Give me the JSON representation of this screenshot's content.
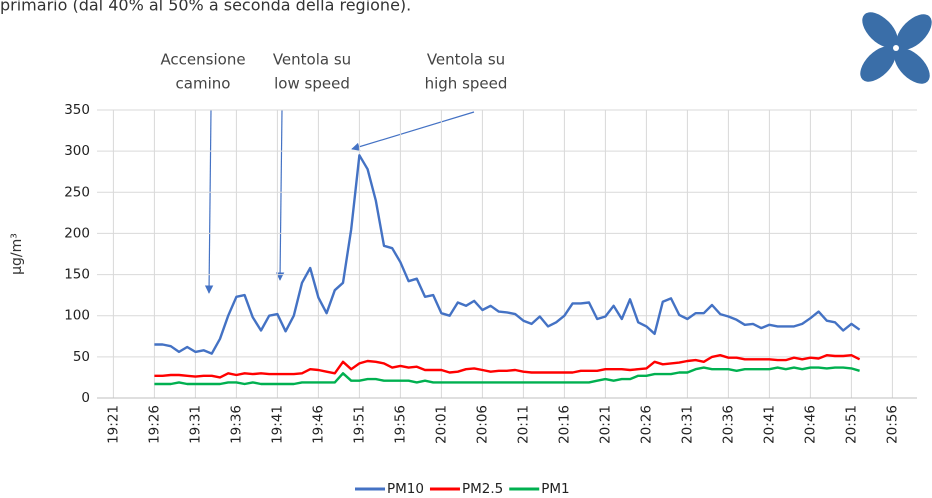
{
  "intro_text": "primario (dal 40% al 50% a seconda della regione).",
  "chart_data": {
    "type": "line",
    "y_label": "µg/m³",
    "annotations": [
      {
        "lines": [
          "Accensione",
          "camino"
        ]
      },
      {
        "lines": [
          "Ventola su",
          "low speed"
        ]
      },
      {
        "lines": [
          "Ventola su",
          "high speed"
        ]
      }
    ],
    "x": [
      "19:26",
      "19:27",
      "19:28",
      "19:29",
      "19:30",
      "19:31",
      "19:32",
      "19:33",
      "19:34",
      "19:35",
      "19:36",
      "19:37",
      "19:38",
      "19:39",
      "19:40",
      "19:41",
      "19:42",
      "19:43",
      "19:44",
      "19:45",
      "19:46",
      "19:47",
      "19:48",
      "19:49",
      "19:50",
      "19:51",
      "19:52",
      "19:53",
      "19:54",
      "19:55",
      "19:56",
      "19:57",
      "19:58",
      "19:59",
      "20:00",
      "20:01",
      "20:02",
      "20:03",
      "20:04",
      "20:05",
      "20:06",
      "20:07",
      "20:08",
      "20:09",
      "20:10",
      "20:11",
      "20:12",
      "20:13",
      "20:14",
      "20:15",
      "20:16",
      "20:17",
      "20:18",
      "20:19",
      "20:20",
      "20:21",
      "20:22",
      "20:23",
      "20:24",
      "20:25",
      "20:26",
      "20:27",
      "20:28",
      "20:29",
      "20:30",
      "20:31",
      "20:32",
      "20:33",
      "20:34",
      "20:35",
      "20:36",
      "20:37",
      "20:38",
      "20:39",
      "20:40",
      "20:41",
      "20:42",
      "20:43",
      "20:44",
      "20:45",
      "20:46",
      "20:47",
      "20:48",
      "20:49",
      "20:50",
      "20:51",
      "20:52"
    ],
    "series": [
      {
        "name": "PM10",
        "color": "#4472c4",
        "values": [
          65,
          65,
          63,
          56,
          62,
          56,
          58,
          54,
          72,
          100,
          123,
          125,
          98,
          82,
          100,
          102,
          81,
          100,
          140,
          158,
          122,
          103,
          131,
          140,
          205,
          295,
          278,
          240,
          185,
          182,
          165,
          142,
          145,
          123,
          125,
          103,
          100,
          116,
          112,
          118,
          107,
          112,
          105,
          104,
          102,
          94,
          90,
          99,
          87,
          92,
          100,
          115,
          115,
          116,
          96,
          99,
          112,
          96,
          120,
          92,
          87,
          78,
          117,
          121,
          101,
          96,
          103,
          103,
          113,
          102,
          99,
          95,
          89,
          90,
          85,
          89,
          87,
          87,
          87,
          90,
          97,
          105,
          94,
          92,
          82,
          90,
          83
        ]
      },
      {
        "name": "PM2.5",
        "color": "#ff0000",
        "values": [
          27,
          27,
          28,
          28,
          27,
          26,
          27,
          27,
          25,
          30,
          28,
          30,
          29,
          30,
          29,
          29,
          29,
          29,
          30,
          35,
          34,
          32,
          30,
          44,
          35,
          42,
          45,
          44,
          42,
          37,
          39,
          37,
          38,
          34,
          34,
          34,
          31,
          32,
          35,
          36,
          34,
          32,
          33,
          33,
          34,
          32,
          31,
          31,
          31,
          31,
          31,
          31,
          33,
          33,
          33,
          35,
          35,
          35,
          34,
          35,
          36,
          44,
          41,
          42,
          43,
          45,
          46,
          44,
          50,
          52,
          49,
          49,
          47,
          47,
          47,
          47,
          46,
          46,
          49,
          47,
          49,
          48,
          52,
          51,
          51,
          52,
          47
        ]
      },
      {
        "name": "PM1",
        "color": "#00b050",
        "values": [
          17,
          17,
          17,
          19,
          17,
          17,
          17,
          17,
          17,
          19,
          19,
          17,
          19,
          17,
          17,
          17,
          17,
          17,
          19,
          19,
          19,
          19,
          19,
          30,
          21,
          21,
          23,
          23,
          21,
          21,
          21,
          21,
          19,
          21,
          19,
          19,
          19,
          19,
          19,
          19,
          19,
          19,
          19,
          19,
          19,
          19,
          19,
          19,
          19,
          19,
          19,
          19,
          19,
          19,
          21,
          23,
          21,
          23,
          23,
          27,
          27,
          29,
          29,
          29,
          31,
          31,
          35,
          37,
          35,
          35,
          35,
          33,
          35,
          35,
          35,
          35,
          37,
          35,
          37,
          35,
          37,
          37,
          36,
          37,
          37,
          36,
          33
        ]
      }
    ],
    "xlim": [
      "19:19",
      "20:59"
    ],
    "xticks": [
      "19:21",
      "19:26",
      "19:31",
      "19:36",
      "19:41",
      "19:46",
      "19:51",
      "19:56",
      "20:01",
      "20:06",
      "20:11",
      "20:16",
      "20:21",
      "20:26",
      "20:31",
      "20:36",
      "20:41",
      "20:46",
      "20:51",
      "20:56"
    ],
    "ylim": [
      0,
      350
    ],
    "yticks": [
      0,
      50,
      100,
      150,
      200,
      250,
      300,
      350
    ],
    "grid": true,
    "legend": "bottom"
  }
}
